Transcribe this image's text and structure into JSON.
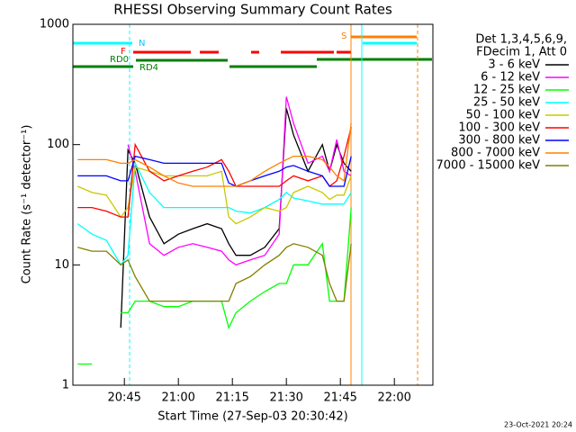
{
  "chart_data": {
    "type": "line",
    "title": "RHESSI Observing Summary Count Rates",
    "x_label": "Start Time (27-Sep-03 20:30:42)",
    "y_label": "Count Rate (s⁻¹ detector⁻¹)",
    "y_scale": "log",
    "xlim": [
      "20:30:42",
      "22:10:42"
    ],
    "ylim": [
      1,
      1000
    ],
    "xticks": [
      "20:45",
      "21:00",
      "21:15",
      "21:30",
      "21:45",
      "22:00"
    ],
    "yticks": [
      1,
      10,
      100,
      1000
    ],
    "legend_header": [
      "Det 1,3,4,5,6,9,",
      "FDecim 1, Att 0"
    ],
    "annotations": [
      "N",
      "F",
      "RD0",
      "RD4",
      "S"
    ],
    "footer": "23-Oct-2021 20:24",
    "x": [
      "20:32",
      "20:36",
      "20:40",
      "20:44",
      "20:46",
      "20:48",
      "20:52",
      "20:56",
      "21:00",
      "21:04",
      "21:08",
      "21:12",
      "21:14",
      "21:16",
      "21:20",
      "21:24",
      "21:28",
      "21:30",
      "21:32",
      "21:36",
      "21:40",
      "21:42",
      "21:44",
      "21:46",
      "21:48"
    ],
    "series": [
      {
        "name": "3 - 6 keV",
        "color": "#000000",
        "values": [
          null,
          null,
          null,
          3,
          90,
          70,
          25,
          15,
          18,
          20,
          22,
          20,
          15,
          12,
          12,
          14,
          20,
          200,
          120,
          60,
          100,
          60,
          100,
          70,
          60
        ]
      },
      {
        "name": "6 - 12 keV",
        "color": "#ff00ff",
        "values": [
          null,
          null,
          null,
          null,
          100,
          60,
          15,
          12,
          14,
          15,
          14,
          13,
          11,
          10,
          11,
          12,
          18,
          250,
          150,
          70,
          80,
          60,
          110,
          60,
          55
        ]
      },
      {
        "name": "12 - 25 keV",
        "color": "#00ff00",
        "values": [
          1.5,
          1.5,
          null,
          4,
          4,
          5,
          5,
          4.5,
          4.5,
          5,
          5,
          5,
          3,
          4,
          5,
          6,
          7,
          7,
          10,
          10,
          15,
          5,
          5,
          5,
          30
        ]
      },
      {
        "name": "25 - 50 keV",
        "color": "#00ffff",
        "values": [
          22,
          18,
          16,
          10,
          12,
          70,
          40,
          30,
          30,
          30,
          30,
          30,
          30,
          28,
          27,
          30,
          35,
          40,
          36,
          34,
          32,
          32,
          32,
          32,
          40
        ]
      },
      {
        "name": "50 - 100 keV",
        "color": "#c8c800",
        "values": [
          45,
          40,
          38,
          25,
          30,
          65,
          60,
          55,
          55,
          55,
          55,
          60,
          25,
          22,
          25,
          30,
          28,
          30,
          40,
          45,
          40,
          35,
          38,
          38,
          55
        ]
      },
      {
        "name": "100 - 300 keV",
        "color": "#ff0000",
        "values": [
          30,
          30,
          28,
          25,
          25,
          100,
          60,
          50,
          55,
          60,
          65,
          75,
          60,
          45,
          45,
          45,
          45,
          50,
          55,
          50,
          55,
          45,
          50,
          80,
          140
        ]
      },
      {
        "name": "300 - 800 keV",
        "color": "#0000ff",
        "values": [
          55,
          55,
          55,
          50,
          50,
          80,
          75,
          70,
          70,
          70,
          70,
          70,
          48,
          45,
          50,
          55,
          60,
          65,
          67,
          60,
          55,
          45,
          45,
          45,
          80
        ]
      },
      {
        "name": "800 - 7000 keV",
        "color": "#ff8000",
        "values": [
          75,
          75,
          75,
          70,
          70,
          75,
          65,
          55,
          48,
          45,
          45,
          45,
          45,
          45,
          50,
          60,
          70,
          75,
          80,
          80,
          75,
          65,
          55,
          50,
          150
        ]
      },
      {
        "name": "7000 - 15000 keV",
        "color": "#808000",
        "values": [
          14,
          13,
          13,
          10,
          11,
          8,
          5,
          5,
          5,
          5,
          5,
          5,
          5,
          7,
          8,
          10,
          12,
          14,
          15,
          14,
          12,
          7,
          5,
          5,
          15
        ]
      }
    ]
  }
}
